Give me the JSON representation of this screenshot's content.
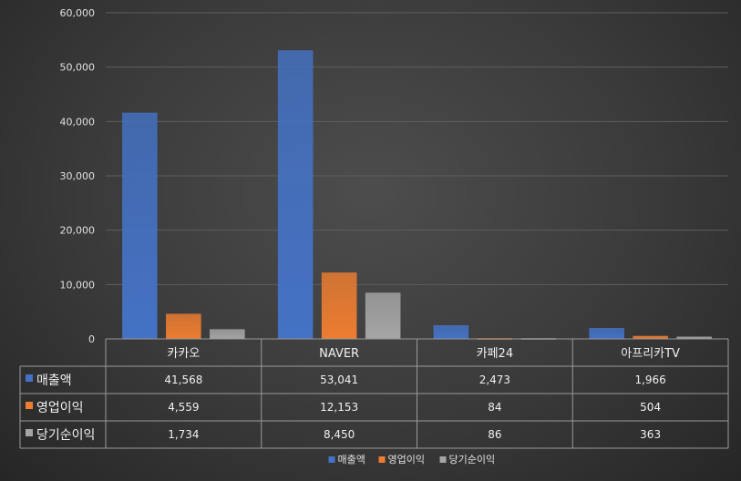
{
  "chart_data": {
    "type": "bar",
    "categories": [
      "카카오",
      "NAVER",
      "카페24",
      "아프리카TV"
    ],
    "series": [
      {
        "name": "매출액",
        "values": [
          41568,
          53041,
          2473,
          1966
        ],
        "color": "#4472c4"
      },
      {
        "name": "영업이익",
        "values": [
          4559,
          12153,
          84,
          504
        ],
        "color": "#ed7d31"
      },
      {
        "name": "당기순이익",
        "values": [
          1734,
          8450,
          86,
          363
        ],
        "color": "#a5a5a5"
      }
    ],
    "ylim": [
      0,
      60000
    ],
    "yticks": [
      0,
      10000,
      20000,
      30000,
      40000,
      50000,
      60000
    ],
    "ytick_labels": [
      "0",
      "10,000",
      "20,000",
      "30,000",
      "40,000",
      "50,000",
      "60,000"
    ],
    "table": {
      "rows": [
        {
          "label": "매출액",
          "cells": [
            "41,568",
            "53,041",
            "2,473",
            "1,966"
          ]
        },
        {
          "label": "영업이익",
          "cells": [
            "4,559",
            "12,153",
            "84",
            "504"
          ]
        },
        {
          "label": "당기순이익",
          "cells": [
            "1,734",
            "8,450",
            "86",
            "363"
          ]
        }
      ]
    },
    "legend": {
      "position": "bottom",
      "items": [
        "매출액",
        "영업이익",
        "당기순이익"
      ]
    },
    "grid": true
  }
}
